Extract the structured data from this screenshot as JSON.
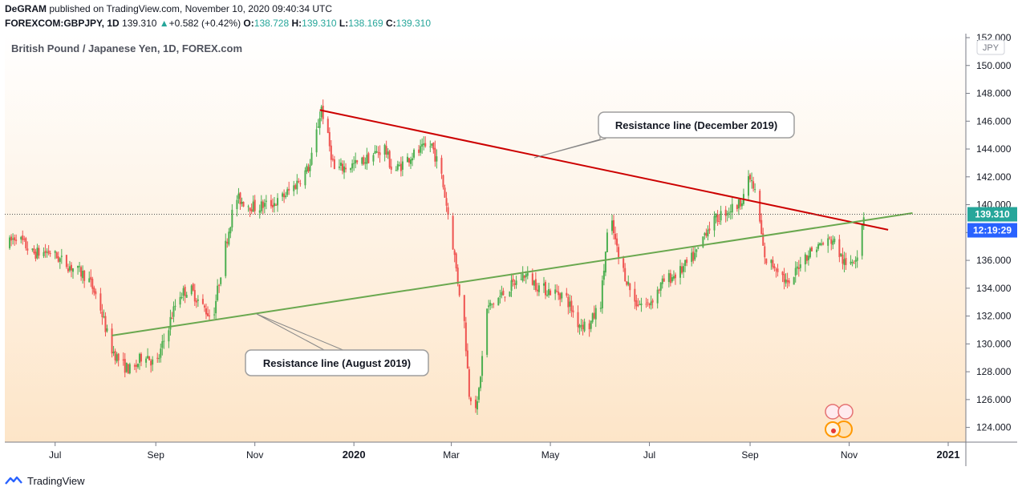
{
  "header": {
    "author": "DeGRAM",
    "published_text": "published on TradingView.com, November 10, 2020 09:40:34 UTC",
    "symbol": "FOREXCOM:GBPJPY, 1D",
    "last": "139.310",
    "change": "+0.582 (+0.42%)",
    "open_label": "O:",
    "open": "138.728",
    "high_label": "H:",
    "high": "139.310",
    "low_label": "L:",
    "low": "138.169",
    "close_label": "C:",
    "close": "139.310"
  },
  "chart_title": "British Pound / Japanese Yen, 1D, FOREX.com",
  "currency_label": "JPY",
  "last_price_label": "139.310",
  "countdown_label": "12:19:29",
  "annotations": {
    "december": "Resistance line (December 2019)",
    "august": "Resistance line (August 2019)"
  },
  "footer": {
    "brand": "TradingView"
  },
  "colors": {
    "up": "#26a69a",
    "up_candle": "#4caf50",
    "down": "#ef5350",
    "red_line": "#cc0000",
    "green_line": "#6aa84f",
    "price_tag": "#26a69a",
    "countdown_tag": "#2962ff",
    "bg_top": "#ffffff",
    "bg_bottom": "#fde5c8"
  },
  "chart_data": {
    "type": "candlestick",
    "y_axis": {
      "min": 123,
      "max": 152,
      "ticks": [
        "124.000",
        "126.000",
        "128.000",
        "130.000",
        "132.000",
        "134.000",
        "136.000",
        "138.000",
        "140.000",
        "142.000",
        "144.000",
        "146.000",
        "148.000",
        "150.000",
        "152.000"
      ]
    },
    "x_axis": {
      "ticks": [
        "Jul",
        "Sep",
        "Nov",
        "2020",
        "Mar",
        "May",
        "Jul",
        "Sep",
        "Nov",
        "2021"
      ],
      "bold": [
        "2020",
        "2021"
      ]
    },
    "path": [
      [
        "2019-06-01",
        137.0
      ],
      [
        "2019-06-07",
        137.8
      ],
      [
        "2019-06-17",
        136.5
      ],
      [
        "2019-06-28",
        136.6
      ],
      [
        "2019-07-07",
        135.8
      ],
      [
        "2019-07-14",
        135.3
      ],
      [
        "2019-07-21",
        134.8
      ],
      [
        "2019-07-28",
        133.0
      ],
      [
        "2019-08-04",
        129.8
      ],
      [
        "2019-08-11",
        128.5
      ],
      [
        "2019-08-18",
        128.0
      ],
      [
        "2019-08-25",
        129.5
      ],
      [
        "2019-09-01",
        128.3
      ],
      [
        "2019-09-08",
        131.0
      ],
      [
        "2019-09-15",
        133.5
      ],
      [
        "2019-09-22",
        134.0
      ],
      [
        "2019-09-29",
        132.8
      ],
      [
        "2019-10-06",
        131.8
      ],
      [
        "2019-10-13",
        136.5
      ],
      [
        "2019-10-20",
        140.5
      ],
      [
        "2019-11-01",
        139.8
      ],
      [
        "2019-11-15",
        140.2
      ],
      [
        "2019-11-25",
        141.3
      ],
      [
        "2019-12-05",
        142.8
      ],
      [
        "2019-12-12",
        147.0
      ],
      [
        "2019-12-20",
        142.5
      ],
      [
        "2020-01-05",
        143.0
      ],
      [
        "2020-01-20",
        144.1
      ],
      [
        "2020-01-25",
        142.3
      ],
      [
        "2020-02-05",
        143.5
      ],
      [
        "2020-02-18",
        144.3
      ],
      [
        "2020-02-24",
        142.0
      ],
      [
        "2020-03-01",
        138.0
      ],
      [
        "2020-03-05",
        134.5
      ],
      [
        "2020-03-09",
        131.5
      ],
      [
        "2020-03-12",
        126.5
      ],
      [
        "2020-03-17",
        125.5
      ],
      [
        "2020-03-23",
        132.5
      ],
      [
        "2020-04-01",
        133.5
      ],
      [
        "2020-04-15",
        135.0
      ],
      [
        "2020-04-25",
        134.0
      ],
      [
        "2020-05-01",
        133.8
      ],
      [
        "2020-05-10",
        133.5
      ],
      [
        "2020-05-18",
        131.5
      ],
      [
        "2020-05-25",
        131.3
      ],
      [
        "2020-06-01",
        133.0
      ],
      [
        "2020-06-05",
        137.8
      ],
      [
        "2020-06-08",
        138.5
      ],
      [
        "2020-06-12",
        136.2
      ],
      [
        "2020-06-22",
        133.0
      ],
      [
        "2020-06-30",
        132.8
      ],
      [
        "2020-07-10",
        134.5
      ],
      [
        "2020-07-20",
        135.2
      ],
      [
        "2020-07-30",
        136.5
      ],
      [
        "2020-08-05",
        138.2
      ],
      [
        "2020-08-15",
        139.4
      ],
      [
        "2020-08-25",
        140.0
      ],
      [
        "2020-09-01",
        141.9
      ],
      [
        "2020-09-05",
        140.5
      ],
      [
        "2020-09-10",
        136.0
      ],
      [
        "2020-09-18",
        135.5
      ],
      [
        "2020-09-25",
        134.0
      ],
      [
        "2020-10-02",
        136.0
      ],
      [
        "2020-10-12",
        137.0
      ],
      [
        "2020-10-22",
        137.5
      ],
      [
        "2020-10-30",
        135.5
      ],
      [
        "2020-11-06",
        136.5
      ],
      [
        "2020-11-09",
        138.7
      ],
      [
        "2020-11-10",
        139.31
      ]
    ],
    "lines": [
      {
        "name": "Resistance line (December 2019)",
        "color": "#cc0000",
        "from": [
          "2019-12-11",
          146.8
        ],
        "to": [
          "2020-11-25",
          138.2
        ]
      },
      {
        "name": "Resistance line (August 2019)",
        "color": "#6aa84f",
        "from": [
          "2019-08-05",
          130.6
        ],
        "to": [
          "2020-12-10",
          139.4
        ]
      }
    ],
    "last_price": 139.31,
    "last_date": "2020-11-10"
  }
}
